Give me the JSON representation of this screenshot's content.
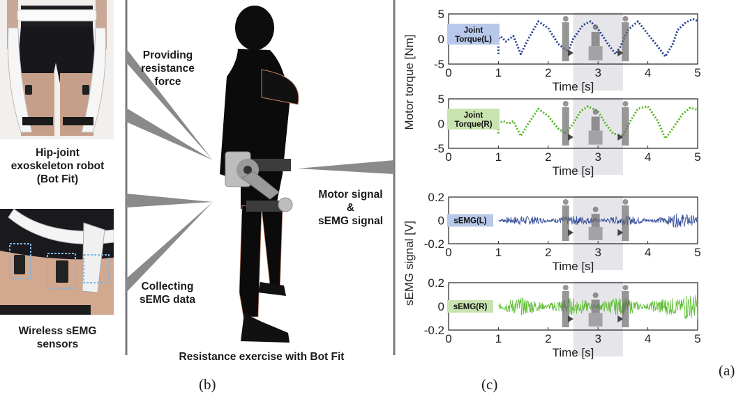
{
  "panel_letters": {
    "a": "(a)",
    "b": "(b)",
    "c": "(c)"
  },
  "left": {
    "robot_caption": [
      "Hip-joint",
      "exoskeleton robot",
      "(Bot Fit)"
    ],
    "sensor_caption": [
      "Wireless sEMG",
      "sensors"
    ]
  },
  "middle": {
    "resistance_label": [
      "Providing",
      "resistance",
      "force"
    ],
    "collect_label": [
      "Collecting",
      "sEMG data"
    ],
    "signal_label": [
      "Motor signal",
      "&",
      "sEMG signal"
    ],
    "bottom_caption": "Resistance exercise with Bot Fit"
  },
  "colors": {
    "blue": "#1f3b8f",
    "green": "#4fb81f",
    "blue_box": "#b8c8ea",
    "green_box": "#c9e3b0",
    "shade": "#e6e6ea"
  },
  "chart_data": [
    {
      "type": "line",
      "legend": "Joint Torque(L)",
      "ylabel": "Motor torque [Nm]",
      "xlabel": "Time [s]",
      "xlim": [
        0,
        5
      ],
      "ylim": [
        -5,
        5
      ],
      "xticks": [
        "0",
        "1",
        "2",
        "3",
        "4",
        "5"
      ],
      "yticks": [
        "5",
        "0",
        "-5"
      ],
      "shaded_x": [
        2.5,
        3.5
      ],
      "x": [
        1.0,
        1.0,
        1.05,
        1.15,
        1.3,
        1.45,
        1.6,
        1.8,
        2.0,
        2.2,
        2.4,
        2.5,
        2.7,
        2.85,
        3.0,
        3.2,
        3.35,
        3.45,
        3.6,
        3.8,
        4.0,
        4.2,
        4.35,
        4.5,
        4.6,
        4.75,
        4.9,
        5.0
      ],
      "y": [
        -3.0,
        0.0,
        0.5,
        -0.5,
        0.6,
        -3.0,
        0.0,
        3.5,
        2.2,
        -1.0,
        -2.5,
        0.0,
        2.8,
        3.5,
        2.0,
        -1.0,
        -3.0,
        -1.5,
        1.8,
        3.5,
        1.0,
        -1.5,
        -3.5,
        -1.0,
        1.8,
        3.2,
        4.0,
        3.6
      ]
    },
    {
      "type": "line",
      "legend": "Joint Torque(R)",
      "ylabel": "Motor torque [Nm]",
      "xlabel": "Time [s]",
      "xlim": [
        0,
        5
      ],
      "ylim": [
        -5,
        5
      ],
      "xticks": [
        "0",
        "1",
        "2",
        "3",
        "4",
        "5"
      ],
      "yticks": [
        "5",
        "0",
        "-5"
      ],
      "shaded_x": [
        2.5,
        3.5
      ],
      "x": [
        1.0,
        1.0,
        1.1,
        1.2,
        1.3,
        1.45,
        1.6,
        1.8,
        2.0,
        2.2,
        2.35,
        2.5,
        2.65,
        2.8,
        3.0,
        3.15,
        3.3,
        3.5,
        3.65,
        3.8,
        4.0,
        4.2,
        4.35,
        4.5,
        4.7,
        4.85,
        5.0
      ],
      "y": [
        -2.0,
        0.0,
        0.5,
        0.0,
        0.5,
        -2.5,
        0.0,
        3.0,
        1.5,
        -1.0,
        -2.0,
        0.0,
        2.5,
        3.5,
        2.5,
        0.0,
        -2.0,
        -2.5,
        0.5,
        3.0,
        3.5,
        0.5,
        -3.0,
        -1.0,
        2.0,
        3.2,
        2.8
      ]
    },
    {
      "type": "line",
      "legend": "sEMG(L)",
      "ylabel": "sEMG signal [V]",
      "xlabel": "Time [s]",
      "xlim": [
        0,
        5
      ],
      "ylim": [
        -0.2,
        0.2
      ],
      "xticks": [
        "0",
        "1",
        "2",
        "3",
        "4",
        "5"
      ],
      "yticks": [
        "0.2",
        "0",
        "-0.2"
      ],
      "shaded_x": [
        2.5,
        3.5
      ],
      "x": [
        1.0,
        2.0
      ],
      "y": [
        0,
        0
      ]
    },
    {
      "type": "line",
      "legend": "sEMG(R)",
      "ylabel": "sEMG signal [V]",
      "xlabel": "Time [s]",
      "xlim": [
        0,
        5
      ],
      "ylim": [
        -0.2,
        0.2
      ],
      "xticks": [
        "0",
        "1",
        "2",
        "3",
        "4",
        "5"
      ],
      "yticks": [
        "0.2",
        "0",
        "-0.2"
      ],
      "shaded_x": [
        2.5,
        3.5
      ],
      "x": [
        1.0,
        2.0
      ],
      "y": [
        0,
        0
      ]
    }
  ]
}
